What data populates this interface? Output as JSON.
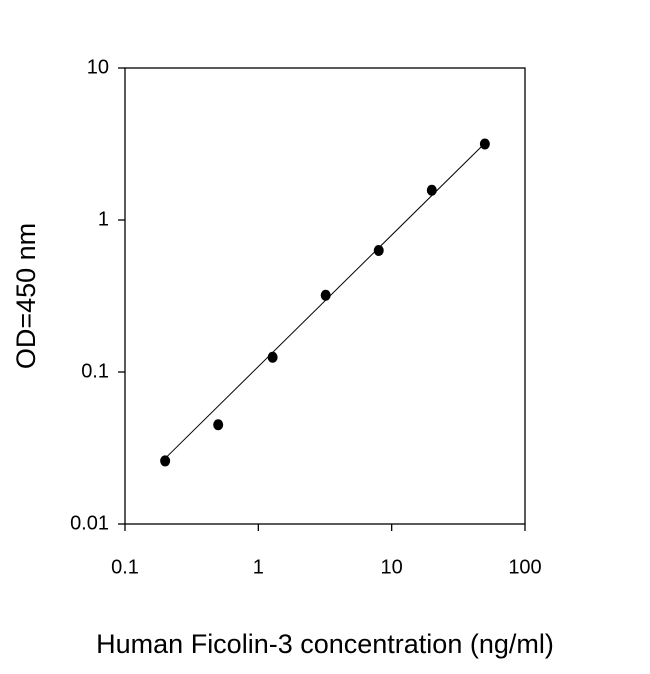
{
  "chart_data": {
    "type": "scatter",
    "x_label": "Human Ficolin-3 concentration (ng/ml)",
    "y_label": "OD=450 nm",
    "x_log": true,
    "y_log": true,
    "xlim": [
      0.1,
      100
    ],
    "ylim": [
      0.01,
      10
    ],
    "xticks": [
      0.1,
      1,
      10,
      100
    ],
    "yticks": [
      0.01,
      0.1,
      1,
      10
    ],
    "color": "#000000",
    "x": [
      0.2,
      0.5,
      1.28,
      3.2,
      8,
      20,
      50
    ],
    "values": [
      0.026,
      0.045,
      0.125,
      0.32,
      0.63,
      1.57,
      3.16
    ],
    "fit_line": {
      "x": [
        0.2,
        50
      ],
      "y": [
        0.027,
        3.2
      ]
    }
  }
}
